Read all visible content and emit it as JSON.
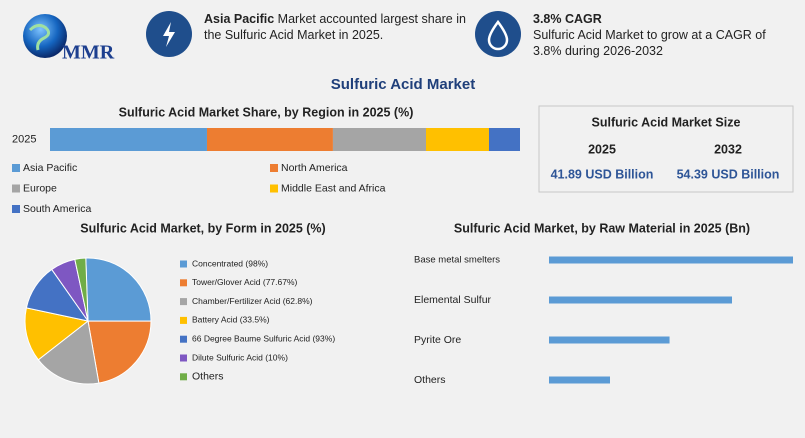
{
  "header": {
    "logo": "MMR",
    "highlight1": {
      "bold": "Asia Pacific",
      "text": "Market accounted largest share in the Sulfuric Acid Market in 2025."
    },
    "highlight2": {
      "bold": "3.8% CAGR",
      "text": "Sulfuric Acid Market to grow at a CAGR of 3.8% during 2026-2032"
    }
  },
  "title": "Sulfuric Acid Market",
  "market_size": {
    "title": "Sulfuric Acid Market Size",
    "columns": [
      {
        "year": "2025",
        "value": "41.89 USD Billion"
      },
      {
        "year": "2032",
        "value": "54.39 USD Billion"
      }
    ]
  },
  "chart_data": [
    {
      "type": "stacked_bar",
      "title": "Sulfuric Acid Market Share, by Region in 2025 (%)",
      "categories": [
        "2025"
      ],
      "series": [
        {
          "name": "Asia Pacific",
          "color": "#5b9bd5",
          "values": [
            33.4
          ]
        },
        {
          "name": "North America",
          "color": "#ed7d31",
          "values": [
            26.8
          ]
        },
        {
          "name": "Europe",
          "color": "#a5a5a5",
          "values": [
            19.8
          ]
        },
        {
          "name": "Middle East and Africa",
          "color": "#ffc000",
          "values": [
            13.4
          ]
        },
        {
          "name": "South America",
          "color": "#4472c4",
          "values": [
            6.6
          ]
        }
      ]
    },
    {
      "type": "pie",
      "title": "Sulfuric Acid Market, by Form in 2025 (%)",
      "categories": [
        "Concentrated (98%)",
        "Tower/Glover Acid (77.67%)",
        "Chamber/Fertilizer Acid (62.8%)",
        "Battery Acid (33.5%)",
        "66 Degree Baume Sulfuric Acid (93%)",
        "Dilute Sulfuric Acid (10%)",
        "Others"
      ],
      "values": [
        25.6,
        22.2,
        17.2,
        13.9,
        11.9,
        6.4,
        2.8
      ],
      "colors": [
        "#5b9bd5",
        "#ed7d31",
        "#a5a5a5",
        "#ffc000",
        "#4472c4",
        "#7e57c2",
        "#70ad47"
      ]
    },
    {
      "type": "hbar",
      "title": "Sulfuric Acid Market, by Raw Material in 2025 (Bn)",
      "categories": [
        "Base metal smelters",
        "Elemental Sulfur",
        "Pyrite Ore",
        "Others"
      ],
      "values": [
        16.8,
        12.6,
        8.3,
        4.2
      ],
      "color": "#5b9bd5"
    }
  ]
}
